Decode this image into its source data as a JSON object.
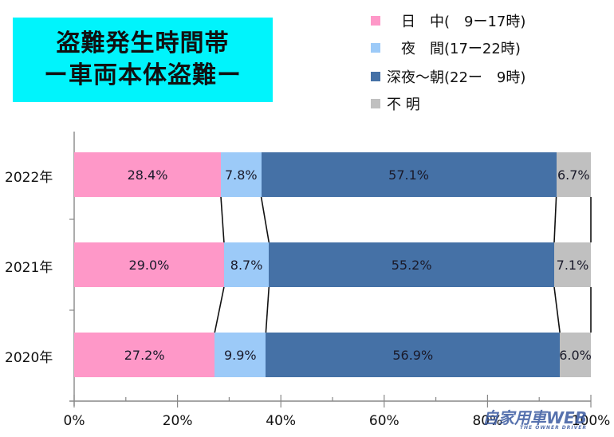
{
  "title": {
    "line1": "盗難発生時間帯",
    "line2": "ー車両本体盗難ー",
    "background": "#00f4fc"
  },
  "legend": [
    {
      "label": "　日　中(　9ー17時)",
      "color": "#fe98c8"
    },
    {
      "label": "　夜　間(17ー22時)",
      "color": "#9ccaf8"
    },
    {
      "label": "深夜～朝(22ー　9時)",
      "color": "#4571a6"
    },
    {
      "label": "不 明",
      "color": "#c0c0c0"
    }
  ],
  "watermark": {
    "text": "自家用車WEB",
    "sub": "THE OWNER DRIVER"
  },
  "chart_data": {
    "type": "bar",
    "orientation": "horizontal",
    "stacked": "percent",
    "title": "盗難発生時間帯 ー車両本体盗難ー",
    "categories": [
      "2022年",
      "2021年",
      "2020年"
    ],
    "series": [
      {
        "name": "日　中(　9ー17時)",
        "color": "#fe98c8",
        "values": [
          28.4,
          29.0,
          27.2
        ]
      },
      {
        "name": "夜　間(17ー22時)",
        "color": "#9ccaf8",
        "values": [
          7.8,
          8.7,
          9.9
        ]
      },
      {
        "name": "深夜～朝(22ー　9時)",
        "color": "#4571a6",
        "values": [
          57.1,
          55.2,
          56.9
        ]
      },
      {
        "name": "不 明",
        "color": "#c0c0c0",
        "values": [
          6.7,
          7.1,
          6.0
        ]
      }
    ],
    "value_labels": [
      [
        "28.4%",
        "7.8%",
        "57.1%",
        "6.7%"
      ],
      [
        "29.0%",
        "8.7%",
        "55.2%",
        "7.1%"
      ],
      [
        "27.2%",
        "9.9%",
        "56.9%",
        "6.0%"
      ]
    ],
    "x_ticks": [
      "0%",
      "20%",
      "40%",
      "60%",
      "80%",
      "100%"
    ],
    "xlim": [
      0,
      100
    ],
    "xlabel": "",
    "ylabel": "",
    "series_lines": true,
    "grid": false,
    "legend_position": "top-right"
  }
}
